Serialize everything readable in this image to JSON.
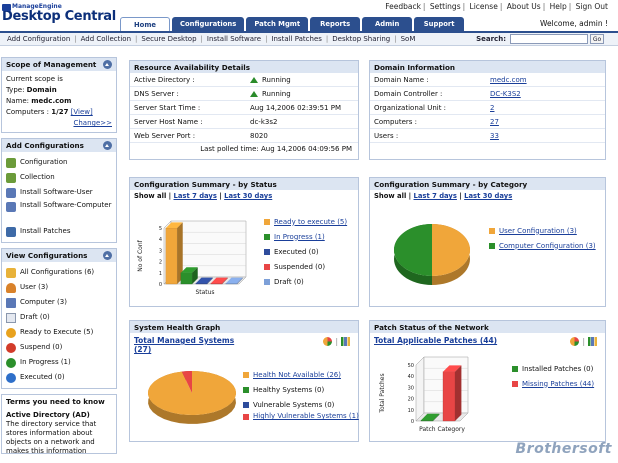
{
  "header": {
    "brand_small": "ManageEngine",
    "brand_large": "Desktop Central",
    "top_links": [
      "Feedback",
      "Settings",
      "License",
      "About Us",
      "Help",
      "Sign Out"
    ],
    "welcome": "Welcome, admin !",
    "tabs": [
      "Home",
      "Configurations",
      "Patch Mgmt",
      "Reports",
      "Admin",
      "Support"
    ]
  },
  "subnav": {
    "items": [
      "Add Configuration",
      "Add Collection",
      "Secure Desktop",
      "Install Software",
      "Install Patches",
      "Desktop Sharing",
      "SoM"
    ],
    "search_label": "Search:",
    "search_value": "",
    "go_label": "Go"
  },
  "sidebar": {
    "scope": {
      "title": "Scope of Management",
      "line1": "Current scope is",
      "type_label": "Type:",
      "type_value": "Domain",
      "name_label": "Name:",
      "name_value": "medc.com",
      "computers_label": "Computers :",
      "computers_value": "1/27",
      "view": "[View]",
      "change": "Change>>"
    },
    "add_configs": {
      "title": "Add Configurations",
      "items": [
        "Configuration",
        "Collection",
        "Install Software-User",
        "Install Software-Computer",
        "Install Patches"
      ]
    },
    "view_configs": {
      "title": "View Configurations",
      "items": [
        "All Configurations (6)",
        "User (3)",
        "Computer (3)",
        "Draft (0)",
        "Ready to Execute (5)",
        "Suspend (0)",
        "In Progress (1)",
        "Executed (0)"
      ]
    },
    "terms": {
      "title": "Terms you need to know",
      "term": "Active Directory (AD)",
      "definition": "The directory service that stores information about objects on a network and makes this information"
    }
  },
  "resource": {
    "title": "Resource Availability Details",
    "rows": [
      {
        "k": "Active Directory :",
        "v": "Running"
      },
      {
        "k": "DNS Server :",
        "v": "Running"
      },
      {
        "k": "Server Start Time :",
        "v": "Aug 14,2006 02:39:51 PM"
      },
      {
        "k": "Server Host Name :",
        "v": "dc-k3s2"
      },
      {
        "k": "Web Server Port :",
        "v": "8020"
      }
    ],
    "polled": "Last polled time: Aug 14,2006 04:09:56 PM"
  },
  "domain": {
    "title": "Domain Information",
    "rows": [
      {
        "k": "Domain Name :",
        "v": "medc.com"
      },
      {
        "k": "Domain Controller :",
        "v": "DC-K3S2"
      },
      {
        "k": "Organizational Unit :",
        "v": "2"
      },
      {
        "k": "Computers :",
        "v": "27"
      },
      {
        "k": "Users :",
        "v": "33"
      }
    ]
  },
  "show_bar": {
    "show_all": "Show all",
    "last7": "Last 7 days",
    "last30": "Last 30 days"
  },
  "config_status": {
    "title": "Configuration Summary - by Status",
    "legend": [
      "Ready to execute (5)",
      "In Progress (1)",
      "Executed (0)",
      "Suspended (0)",
      "Draft (0)"
    ],
    "legend_colors": [
      "#f0a63a",
      "#2b8f2b",
      "#2e4c9c",
      "#e84545",
      "#7da0d8"
    ]
  },
  "config_category": {
    "title": "Configuration Summary - by Category",
    "legend": [
      "User Configuration (3)",
      "Computer Configuration (3)"
    ],
    "legend_colors": [
      "#f0a63a",
      "#2b8f2b"
    ]
  },
  "system_health": {
    "title": "System Health Graph",
    "total": "Total Managed Systems (27)",
    "legend": [
      "Health Not Available (26)",
      "Healthy Systems (0)",
      "Vulnerable Systems (0)",
      "Highly Vulnerable Systems (1)"
    ],
    "legend_colors": [
      "#f0a63a",
      "#2b8f2b",
      "#2e4c9c",
      "#e84545"
    ]
  },
  "patch_status": {
    "title": "Patch Status of the Network",
    "total": "Total Applicable Patches (44)",
    "legend": [
      "Installed Patches (0)",
      "Missing Patches (44)"
    ],
    "legend_colors": [
      "#2b8f2b",
      "#e84545"
    ]
  },
  "chart_data": [
    {
      "type": "bar",
      "title": "",
      "xlabel": "Status",
      "ylabel": "No of Conf",
      "categories": [
        "Ready to execute",
        "In Progress",
        "Executed",
        "Suspended",
        "Draft"
      ],
      "values": [
        5,
        1,
        0,
        0,
        0
      ],
      "ylim": [
        0,
        5
      ],
      "yticks": [
        0,
        1,
        2,
        3,
        4,
        5
      ]
    },
    {
      "type": "pie",
      "categories": [
        "User Configuration",
        "Computer Configuration"
      ],
      "values": [
        3,
        3
      ]
    },
    {
      "type": "pie",
      "categories": [
        "Health Not Available",
        "Healthy Systems",
        "Vulnerable Systems",
        "Highly Vulnerable Systems"
      ],
      "values": [
        26,
        0,
        0,
        1
      ]
    },
    {
      "type": "bar",
      "xlabel": "Patch Category",
      "ylabel": "Total Patches",
      "categories": [
        "Installed Patches",
        "Missing Patches"
      ],
      "values": [
        0,
        44
      ],
      "ylim": [
        0,
        50
      ],
      "yticks": [
        0,
        10,
        20,
        30,
        40,
        50
      ]
    }
  ],
  "watermark": "Brothersoft"
}
